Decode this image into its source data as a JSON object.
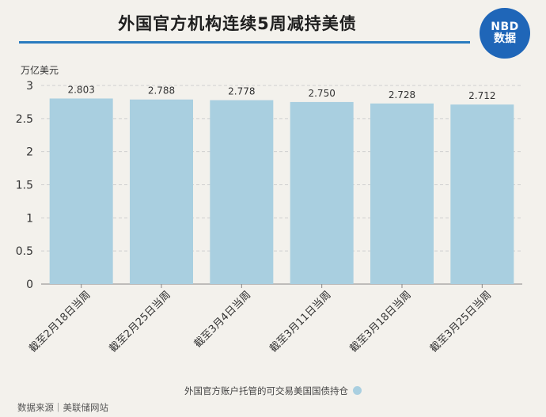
{
  "header": {
    "title": "外国官方机构连续5周减持美债",
    "logo_top": "NBD",
    "logo_bottom": "数据"
  },
  "chart_data": {
    "type": "bar",
    "title": "外国官方机构连续5周减持美债",
    "ylabel": "万亿美元",
    "xlabel": "",
    "categories": [
      "截至2月18日当周",
      "截至2月25日当周",
      "截至3月4日当周",
      "截至3月11日当周",
      "截至3月18日当周",
      "截至3月25日当周"
    ],
    "series": [
      {
        "name": "外国官方账户托管的可交易美国国债持仓",
        "values": [
          2.803,
          2.788,
          2.778,
          2.75,
          2.728,
          2.712
        ],
        "labels": [
          "2.803",
          "2.788",
          "2.778",
          "2.750",
          "2.728",
          "2.712"
        ]
      }
    ],
    "ylim": [
      0,
      3
    ],
    "yticks": [
      "0",
      "0.5",
      "1",
      "1.5",
      "2",
      "2.5",
      "3"
    ],
    "grid": true,
    "legend_position": "bottom",
    "colors": {
      "bar": "#a9cfe0",
      "grid": "#cfcfcf"
    }
  },
  "footer": {
    "source": "数据来源｜美联储网站"
  }
}
